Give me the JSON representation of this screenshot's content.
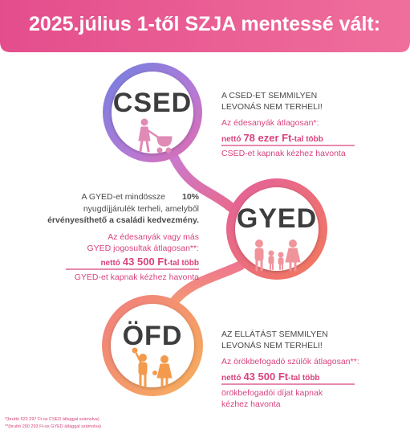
{
  "header": {
    "title": "2025.július 1-től SZJA mentessé vált:"
  },
  "sections": [
    {
      "label": "CSED",
      "heading": [
        "A CSED-ET SEMMILYEN",
        "LEVONÁS NEM TERHELI!"
      ],
      "intro": [
        "Az édesanyák átlagosan*:"
      ],
      "amount": {
        "prefix": "nettó",
        "value": "78 ezer Ft",
        "suffix": "-tal több"
      },
      "outro": [
        "CSED-et kapnak kézhez havonta"
      ]
    },
    {
      "label": "GYED",
      "heading": [
        "A GYED-et mindössze",
        "10%",
        "nyugdíjjárulék terheli, amelyből",
        "érvényesíthető a családi kedvezmény."
      ],
      "intro": [
        "Az édesanyák vagy más",
        "GYED jogosultak átlagosan**:"
      ],
      "amount": {
        "prefix": "nettó",
        "value": "43 500 Ft",
        "suffix": "-tal több"
      },
      "outro": [
        "GYED-et kapnak kézhez havonta"
      ]
    },
    {
      "label": "ÖFD",
      "heading": [
        "AZ ELLÁTÁST SEMMILYEN",
        "LEVONÁS NEM TERHELI!"
      ],
      "intro": [
        "Az örökbefogadó szülők átlagosan**:"
      ],
      "amount": {
        "prefix": "nettó",
        "value": "43 500 Ft",
        "suffix": "-tal több"
      },
      "outro": [
        "örökbefogadói díjat kapnak",
        "kézhez havonta"
      ]
    }
  ],
  "footnotes": [
    "*(bruttó 522 297 Ft-os CSED átlaggal számolva)",
    "**(bruttó 290 293 Ft-os GYED átlaggal számolva)"
  ]
}
